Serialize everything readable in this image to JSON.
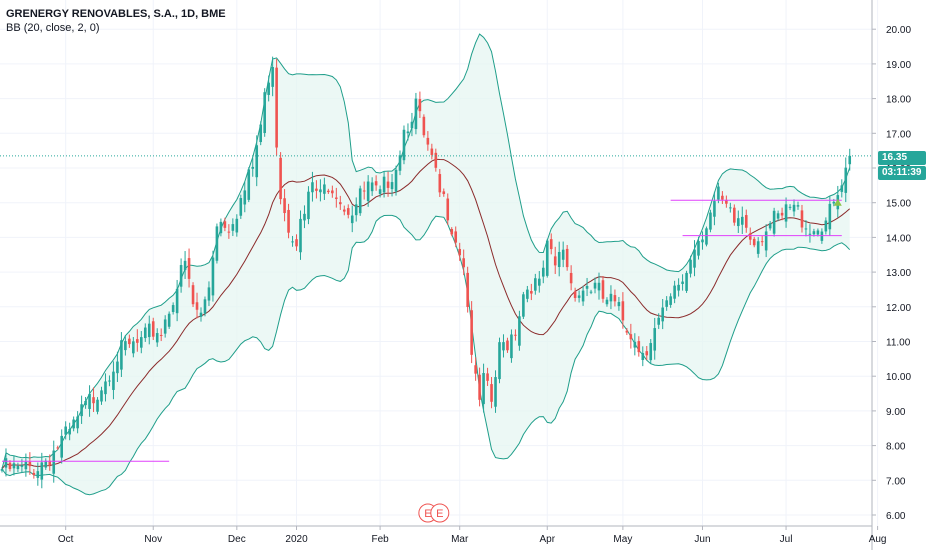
{
  "header": {
    "title": "GRENERGY RENOVABLES, S.A., 1D, BME",
    "indicator": "BB (20, close, 2, 0)"
  },
  "price_badge": {
    "value": "16.35",
    "countdown": "03:11:39"
  },
  "events": [
    {
      "label": "E",
      "date_index": 107
    },
    {
      "label": "E",
      "date_index": 110
    }
  ],
  "colors": {
    "up": "#26a69a",
    "down": "#ef5350",
    "band": "#1f9e8a",
    "band_fill": "#e5f5f2",
    "basis": "#8b2b2b",
    "level": "#e040fb",
    "last_price_line": "#26a69a"
  },
  "chart_data": {
    "type": "candlestick",
    "title": "GRENERGY RENOVABLES, S.A., 1D, BME",
    "indicator": "BB (20, close, 2, 0)",
    "x_ticks": [
      {
        "label": "Oct",
        "i": 16
      },
      {
        "label": "Nov",
        "i": 38
      },
      {
        "label": "Dec",
        "i": 59
      },
      {
        "label": "2020",
        "i": 74
      },
      {
        "label": "Feb",
        "i": 95
      },
      {
        "label": "Mar",
        "i": 115
      },
      {
        "label": "Apr",
        "i": 137
      },
      {
        "label": "May",
        "i": 156
      },
      {
        "label": "Jun",
        "i": 176
      },
      {
        "label": "Jul",
        "i": 197
      },
      {
        "label": "Aug",
        "i": 220
      }
    ],
    "y_ticks": [
      "6.00",
      "7.00",
      "8.00",
      "9.00",
      "10.00",
      "11.00",
      "12.00",
      "13.00",
      "14.00",
      "15.00",
      "16.00",
      "17.00",
      "18.00",
      "19.00",
      "20.00"
    ],
    "ylim": [
      5.6,
      20.8
    ],
    "last_price": 16.35,
    "bars": 214,
    "close_anchors": [
      [
        0,
        7.5
      ],
      [
        5,
        7.45
      ],
      [
        9,
        7.6
      ],
      [
        12,
        7.9
      ],
      [
        15,
        8.3
      ],
      [
        17,
        8.5
      ],
      [
        20,
        9.1
      ],
      [
        23,
        9.6
      ],
      [
        26,
        10.2
      ],
      [
        29,
        10.8
      ],
      [
        32,
        11.0
      ],
      [
        35,
        11.1
      ],
      [
        38,
        11.5
      ],
      [
        40,
        11.5
      ],
      [
        43,
        12.5
      ],
      [
        46,
        13.4
      ],
      [
        48,
        12.2
      ],
      [
        50,
        11.9
      ],
      [
        52,
        12.8
      ],
      [
        54,
        14.7
      ],
      [
        57,
        14.6
      ],
      [
        59,
        15.0
      ],
      [
        61,
        15.5
      ],
      [
        63,
        16.2
      ],
      [
        65,
        17.4
      ],
      [
        67,
        18.9
      ],
      [
        68,
        19.3
      ],
      [
        69,
        17.0
      ],
      [
        70,
        15.5
      ],
      [
        72,
        14.6
      ],
      [
        74,
        14.2
      ],
      [
        76,
        14.8
      ],
      [
        78,
        15.7
      ],
      [
        80,
        15.3
      ],
      [
        82,
        15.8
      ],
      [
        84,
        15.6
      ],
      [
        86,
        15.1
      ],
      [
        88,
        15.0
      ],
      [
        90,
        15.3
      ],
      [
        92,
        15.6
      ],
      [
        95,
        15.3
      ],
      [
        97,
        15.9
      ],
      [
        99,
        16.3
      ],
      [
        101,
        17.3
      ],
      [
        103,
        17.8
      ],
      [
        104,
        18.0
      ],
      [
        106,
        17.0
      ],
      [
        108,
        16.3
      ],
      [
        110,
        15.4
      ],
      [
        112,
        15.0
      ],
      [
        114,
        14.2
      ],
      [
        116,
        13.5
      ],
      [
        117,
        12.2
      ],
      [
        118,
        11.0
      ],
      [
        119,
        9.9
      ],
      [
        120,
        9.4
      ],
      [
        121,
        10.0
      ],
      [
        123,
        9.4
      ],
      [
        125,
        10.9
      ],
      [
        127,
        11.2
      ],
      [
        129,
        11.6
      ],
      [
        131,
        12.6
      ],
      [
        133,
        12.9
      ],
      [
        135,
        12.7
      ],
      [
        137,
        13.8
      ],
      [
        139,
        13.3
      ],
      [
        141,
        13.9
      ],
      [
        143,
        12.9
      ],
      [
        145,
        12.6
      ],
      [
        147,
        12.8
      ],
      [
        149,
        12.7
      ],
      [
        151,
        12.4
      ],
      [
        153,
        12.3
      ],
      [
        155,
        12.0
      ],
      [
        157,
        11.6
      ],
      [
        159,
        11.4
      ],
      [
        160,
        10.9
      ],
      [
        162,
        11.1
      ],
      [
        164,
        11.5
      ],
      [
        166,
        11.9
      ],
      [
        168,
        12.3
      ],
      [
        170,
        12.8
      ],
      [
        172,
        13.2
      ],
      [
        174,
        14.0
      ],
      [
        176,
        14.4
      ],
      [
        178,
        14.9
      ],
      [
        180,
        15.3
      ],
      [
        182,
        14.9
      ],
      [
        184,
        14.6
      ],
      [
        186,
        14.8
      ],
      [
        188,
        14.3
      ],
      [
        190,
        14.2
      ],
      [
        192,
        14.5
      ],
      [
        194,
        14.6
      ],
      [
        196,
        14.7
      ],
      [
        198,
        15.0
      ],
      [
        200,
        14.9
      ],
      [
        202,
        14.6
      ],
      [
        204,
        14.4
      ],
      [
        206,
        14.6
      ],
      [
        208,
        14.8
      ],
      [
        210,
        15.3
      ],
      [
        211,
        15.6
      ],
      [
        212,
        15.9
      ],
      [
        213,
        16.35
      ]
    ],
    "bollinger": {
      "period": 20,
      "source": "close",
      "stddev": 2,
      "offset": 0
    },
    "horizontal_levels": [
      {
        "price": 7.55,
        "from_index": 0,
        "to_index": 42
      },
      {
        "price": 15.07,
        "from_index": 168,
        "to_index": 211
      },
      {
        "price": 14.05,
        "from_index": 171,
        "to_index": 211
      }
    ]
  }
}
